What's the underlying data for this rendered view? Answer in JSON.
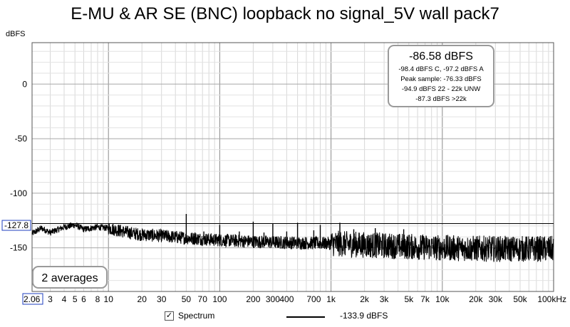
{
  "title": "E-MU & AR SE (BNC) loopback no signal_5V wall pack7",
  "ylabel": "dBFS",
  "chart_data": {
    "type": "line",
    "xscale": "log",
    "xlim": [
      2.06,
      100000
    ],
    "ylim": [
      -190,
      38
    ],
    "grid": true,
    "x_tick_labels": [
      "2.06",
      "3",
      "4",
      "5",
      "6",
      "8",
      "10",
      "20",
      "30",
      "50",
      "70",
      "100",
      "200",
      "300",
      "400",
      "700",
      "1k",
      "2k",
      "3k",
      "5k",
      "7k",
      "10k",
      "20k",
      "30k",
      "50k",
      "100kHz"
    ],
    "x_tick_values": [
      2.06,
      3,
      4,
      5,
      6,
      8,
      10,
      20,
      30,
      50,
      70,
      100,
      200,
      300,
      400,
      700,
      1000,
      2000,
      3000,
      5000,
      7000,
      10000,
      20000,
      30000,
      50000,
      100000
    ],
    "y_tick_labels": [
      "0",
      "-50",
      "-100",
      "-150"
    ],
    "y_tick_values": [
      0,
      -50,
      -100,
      -150
    ],
    "cursor_label": "-127.8",
    "cursor_value": -127.8,
    "series": [
      {
        "noise_floor": [
          [
            2.06,
            -137
          ],
          [
            2.5,
            -132
          ],
          [
            3,
            -136
          ],
          [
            4,
            -131
          ],
          [
            5,
            -129
          ],
          [
            6,
            -133
          ],
          [
            8,
            -131
          ],
          [
            10,
            -132
          ],
          [
            15,
            -136
          ],
          [
            20,
            -138
          ],
          [
            30,
            -139
          ],
          [
            50,
            -141
          ],
          [
            100,
            -143
          ],
          [
            300,
            -145
          ],
          [
            1000,
            -146
          ],
          [
            3000,
            -148
          ],
          [
            10000,
            -150
          ],
          [
            30000,
            -151
          ],
          [
            100000,
            -151
          ]
        ],
        "spikes": [
          [
            15,
            -138
          ],
          [
            20,
            -137
          ],
          [
            30,
            -142
          ],
          [
            42,
            -142
          ],
          [
            50,
            -119
          ],
          [
            60,
            -136
          ],
          [
            72,
            -135
          ],
          [
            100,
            -129
          ],
          [
            150,
            -135
          ],
          [
            200,
            -126
          ],
          [
            250,
            -136
          ],
          [
            300,
            -128
          ],
          [
            400,
            -135
          ],
          [
            500,
            -127
          ],
          [
            700,
            -134
          ],
          [
            800,
            -129
          ],
          [
            1200,
            -127
          ],
          [
            1600,
            -133
          ],
          [
            2500,
            -132
          ],
          [
            4500,
            -133
          ]
        ]
      }
    ]
  },
  "stats": {
    "headline": "-86.58 dBFS",
    "lines": [
      "-98.4 dBFS C, -97.2 dBFS A",
      "Peak sample: -76.33 dBFS",
      "-94.9 dBFS 22 - 22k UNW",
      "-87.3 dBFS >22k"
    ]
  },
  "averages_label": "2 averages",
  "legend": {
    "checkbox_label": "Spectrum",
    "checked_mark": "✓",
    "value_label": "-133.9 dBFS"
  }
}
